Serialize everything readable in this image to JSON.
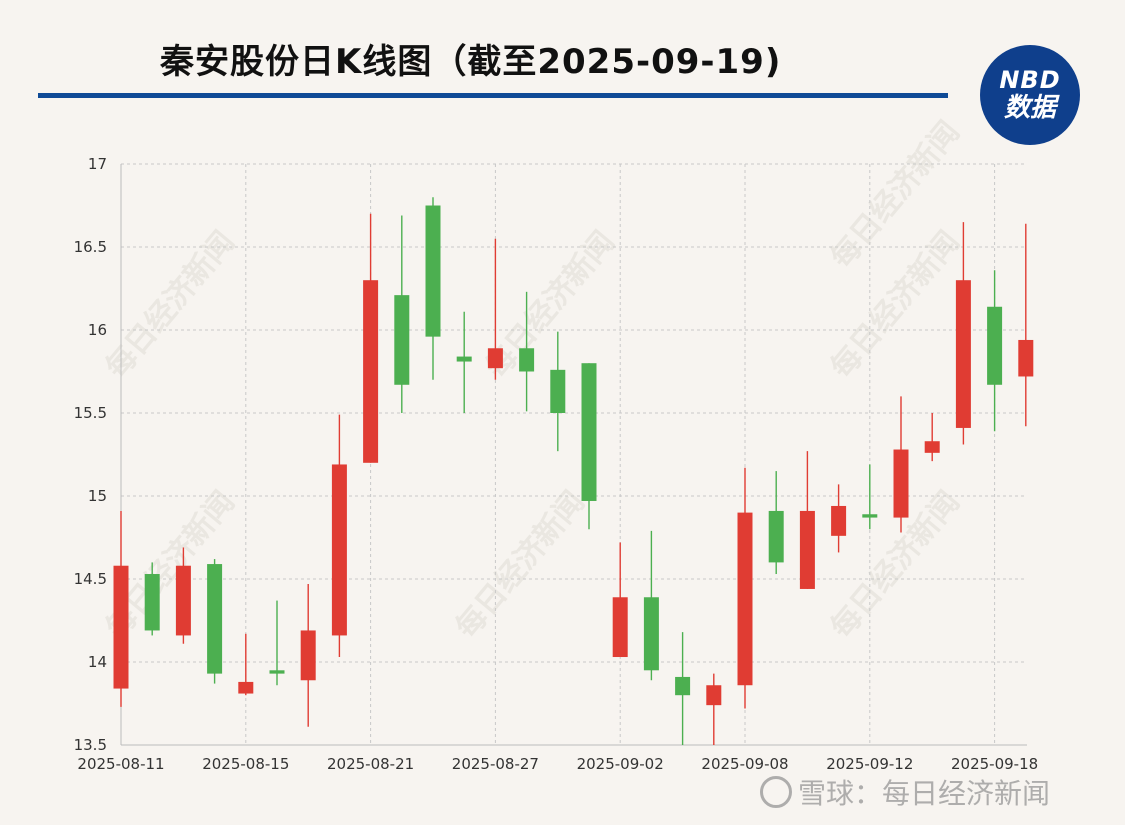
{
  "title": "秦安股份日K线图（截至2025-09-19)",
  "logo": {
    "line1": "NBD",
    "line2": "数据"
  },
  "watermark": "每日经济新闻",
  "footer_watermark": "雪球：每日经济新闻",
  "colors": {
    "up": "#e03c33",
    "down": "#4caf50",
    "rule": "#0f4a96"
  },
  "chart_data": {
    "type": "candlestick",
    "ylim": [
      13.5,
      17
    ],
    "yticks": [
      13.5,
      14,
      14.5,
      15,
      15.5,
      16,
      16.5,
      17
    ],
    "xtick_labels": [
      "2025-08-11",
      "2025-08-15",
      "2025-08-21",
      "2025-08-27",
      "2025-09-02",
      "2025-09-08",
      "2025-09-12",
      "2025-09-18"
    ],
    "xtick_indices": [
      0,
      4,
      8,
      12,
      16,
      20,
      24,
      28
    ],
    "candles": [
      {
        "open": 13.84,
        "close": 14.58,
        "high": 14.91,
        "low": 13.73
      },
      {
        "open": 14.53,
        "close": 14.19,
        "high": 14.6,
        "low": 14.16
      },
      {
        "open": 14.16,
        "close": 14.58,
        "high": 14.69,
        "low": 14.11
      },
      {
        "open": 14.59,
        "close": 13.93,
        "high": 14.62,
        "low": 13.87
      },
      {
        "open": 13.81,
        "close": 13.88,
        "high": 14.17,
        "low": 13.8
      },
      {
        "open": 13.95,
        "close": 13.93,
        "high": 14.37,
        "low": 13.86
      },
      {
        "open": 13.89,
        "close": 14.19,
        "high": 14.47,
        "low": 13.61
      },
      {
        "open": 14.16,
        "close": 15.19,
        "high": 15.49,
        "low": 14.03
      },
      {
        "open": 15.2,
        "close": 16.3,
        "high": 16.7,
        "low": 15.2
      },
      {
        "open": 16.21,
        "close": 15.67,
        "high": 16.69,
        "low": 15.5
      },
      {
        "open": 16.75,
        "close": 15.96,
        "high": 16.8,
        "low": 15.7
      },
      {
        "open": 15.84,
        "close": 15.81,
        "high": 16.11,
        "low": 15.5
      },
      {
        "open": 15.77,
        "close": 15.89,
        "high": 16.55,
        "low": 15.7
      },
      {
        "open": 15.89,
        "close": 15.75,
        "high": 16.23,
        "low": 15.51
      },
      {
        "open": 15.76,
        "close": 15.5,
        "high": 15.99,
        "low": 15.27
      },
      {
        "open": 15.8,
        "close": 14.97,
        "high": 15.8,
        "low": 14.8
      },
      {
        "open": 14.03,
        "close": 14.39,
        "high": 14.72,
        "low": 14.03
      },
      {
        "open": 14.39,
        "close": 13.95,
        "high": 14.79,
        "low": 13.89
      },
      {
        "open": 13.91,
        "close": 13.8,
        "high": 14.18,
        "low": 13.5
      },
      {
        "open": 13.74,
        "close": 13.86,
        "high": 13.93,
        "low": 13.5
      },
      {
        "open": 13.86,
        "close": 14.9,
        "high": 15.17,
        "low": 13.72
      },
      {
        "open": 14.91,
        "close": 14.6,
        "high": 15.15,
        "low": 14.53
      },
      {
        "open": 14.44,
        "close": 14.91,
        "high": 15.27,
        "low": 14.44
      },
      {
        "open": 14.76,
        "close": 14.94,
        "high": 15.07,
        "low": 14.66
      },
      {
        "open": 14.89,
        "close": 14.87,
        "high": 15.19,
        "low": 14.8
      },
      {
        "open": 14.87,
        "close": 15.28,
        "high": 15.6,
        "low": 14.78
      },
      {
        "open": 15.26,
        "close": 15.33,
        "high": 15.5,
        "low": 15.21
      },
      {
        "open": 15.41,
        "close": 16.3,
        "high": 16.65,
        "low": 15.31
      },
      {
        "open": 16.14,
        "close": 15.67,
        "high": 16.36,
        "low": 15.39
      },
      {
        "open": 15.72,
        "close": 15.94,
        "high": 16.64,
        "low": 15.42
      }
    ]
  }
}
